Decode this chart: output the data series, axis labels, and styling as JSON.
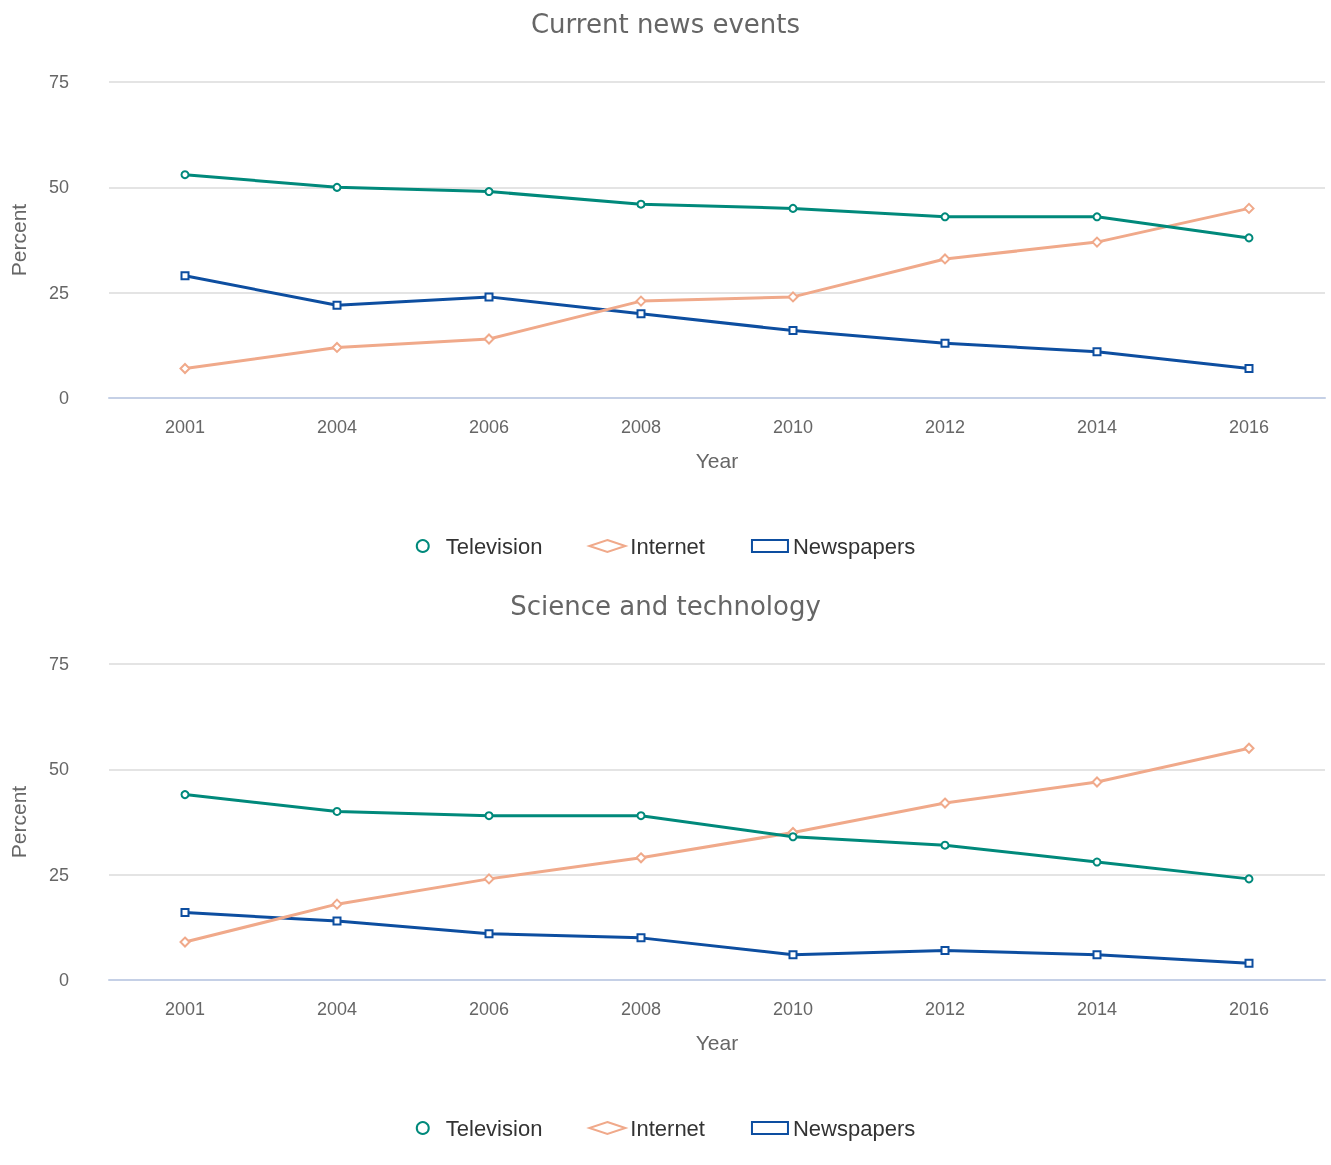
{
  "chart_data": [
    {
      "type": "line",
      "title": "Current news events",
      "xlabel": "Year",
      "ylabel": "Percent",
      "categories": [
        "2001",
        "2004",
        "2006",
        "2008",
        "2010",
        "2012",
        "2014",
        "2016"
      ],
      "series": [
        {
          "name": "Television",
          "color": "#00897b",
          "marker": "circle",
          "values": [
            53,
            50,
            49,
            46,
            45,
            43,
            43,
            38
          ]
        },
        {
          "name": "Internet",
          "color": "#f0a98a",
          "marker": "diamond",
          "values": [
            7,
            12,
            14,
            23,
            24,
            33,
            37,
            45
          ]
        },
        {
          "name": "Newspapers",
          "color": "#0d4ea0",
          "marker": "square",
          "values": [
            29,
            22,
            24,
            20,
            16,
            13,
            11,
            7
          ]
        }
      ],
      "ylim": [
        0,
        75
      ],
      "yticks": [
        0,
        25,
        50,
        75
      ],
      "grid": "y",
      "legend": "bottom",
      "line_style": "solid"
    },
    {
      "type": "line",
      "title": "Science and technology",
      "xlabel": "Year",
      "ylabel": "Percent",
      "categories": [
        "2001",
        "2004",
        "2006",
        "2008",
        "2010",
        "2012",
        "2014",
        "2016"
      ],
      "series": [
        {
          "name": "Television",
          "color": "#00897b",
          "marker": "circle",
          "values": [
            44,
            40,
            39,
            39,
            34,
            32,
            28,
            24
          ]
        },
        {
          "name": "Internet",
          "color": "#f0a98a",
          "marker": "diamond",
          "values": [
            9,
            18,
            24,
            29,
            35,
            42,
            47,
            55
          ]
        },
        {
          "name": "Newspapers",
          "color": "#0d4ea0",
          "marker": "square",
          "values": [
            16,
            14,
            11,
            10,
            6,
            7,
            6,
            4
          ]
        }
      ],
      "ylim": [
        0,
        75
      ],
      "yticks": [
        0,
        25,
        50,
        75
      ],
      "grid": "y",
      "legend": "bottom",
      "line_style": "solid"
    }
  ]
}
